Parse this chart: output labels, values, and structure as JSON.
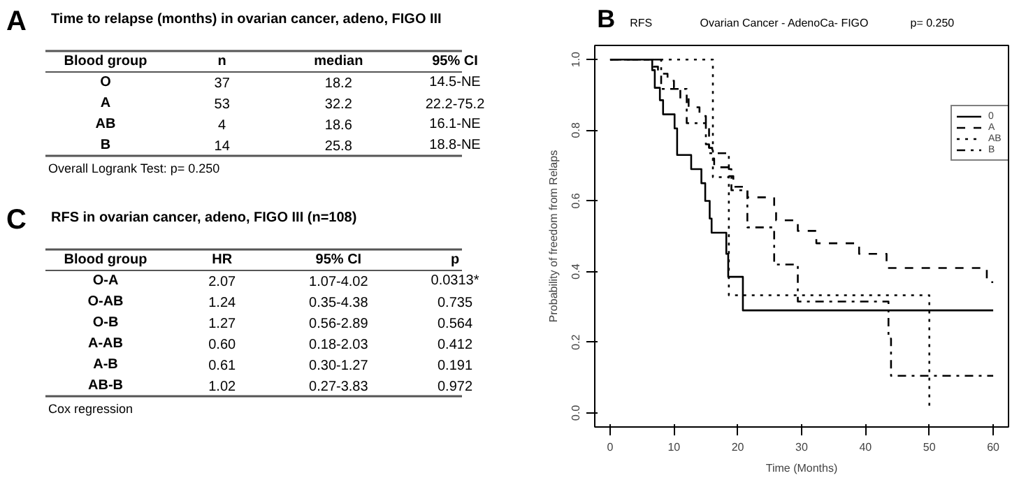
{
  "chart_data": [
    {
      "type": "other",
      "title": "Time to relapse (months) in ovarian cancer, adeno, FIGO III",
      "annotations": [
        "A",
        "Overall Logrank Test: p= 0.250"
      ],
      "categories": [
        "Blood group",
        "n",
        "median",
        "95% CI"
      ],
      "cell_labels": [
        [
          "O",
          "37",
          "18.2",
          "14.5-NE"
        ],
        [
          "A",
          "53",
          "32.2",
          "22.2-75.2"
        ],
        [
          "AB",
          "4",
          "18.6",
          "16.1-NE"
        ],
        [
          "B",
          "14",
          "25.8",
          "18.8-NE"
        ]
      ]
    },
    {
      "type": "step",
      "title": "Ovarian Cancer - AdenoCa- FIGO",
      "annotations": [
        "B",
        "RFS",
        "p= 0.250"
      ],
      "xlabel": "Time (Months)",
      "ylabel": "Probability of freedom from Relaps",
      "xlim": [
        -2.4,
        62.4
      ],
      "ylim": [
        -0.04,
        1.04
      ],
      "xticks": [
        0,
        10,
        20,
        30,
        40,
        50,
        60
      ],
      "yticks": [
        {
          "value": 0,
          "label": "0.0"
        },
        {
          "value": 0.2,
          "label": "0.2"
        },
        {
          "value": 0.4,
          "label": "0.4"
        },
        {
          "value": 0.6,
          "label": "0.6"
        },
        {
          "value": 0.8,
          "label": "0.8"
        },
        {
          "value": 1,
          "label": "1.0"
        }
      ],
      "grid": false,
      "legend": "right",
      "marker": "none",
      "series": [
        {
          "name": "0",
          "color": "#000000",
          "line_style": "solid",
          "x": [
            0,
            6.6,
            7.0,
            7.8,
            8.3,
            10.1,
            10.5,
            12.7,
            14.3,
            14.9,
            15.6,
            15.9,
            18.2,
            18.5,
            20.8,
            60
          ],
          "values": [
            1,
            0.97,
            0.92,
            0.885,
            0.845,
            0.805,
            0.73,
            0.69,
            0.65,
            0.6,
            0.55,
            0.51,
            0.45,
            0.385,
            0.29,
            0.29
          ]
        },
        {
          "name": "A",
          "color": "#000000",
          "line_style": "dashed",
          "x": [
            0,
            6.8,
            7.5,
            9.0,
            10.0,
            11.0,
            12.3,
            14.0,
            15.0,
            15.5,
            16.0,
            16.3,
            18.6,
            19.3,
            21.5,
            25.7,
            26.0,
            29.4,
            32.3,
            39.0,
            43.3,
            59.0,
            60
          ],
          "values": [
            1,
            0.98,
            0.96,
            0.94,
            0.92,
            0.89,
            0.865,
            0.84,
            0.81,
            0.75,
            0.72,
            0.695,
            0.67,
            0.64,
            0.61,
            0.57,
            0.545,
            0.515,
            0.48,
            0.45,
            0.41,
            0.37,
            0.37
          ]
        },
        {
          "name": "AB",
          "color": "#000000",
          "line_style": "dotted",
          "x": [
            0,
            16.1,
            18.6,
            50.0
          ],
          "values": [
            1,
            0.667,
            0.333,
            0.01
          ]
        },
        {
          "name": "B",
          "color": "#000000",
          "line_style": "dashdot",
          "x": [
            0,
            8.0,
            12.0,
            15.0,
            15.5,
            18.6,
            19.0,
            21.5,
            25.7,
            29.4,
            43.6,
            44.0,
            60
          ],
          "values": [
            1,
            0.917,
            0.82,
            0.76,
            0.735,
            0.69,
            0.63,
            0.525,
            0.42,
            0.315,
            0.21,
            0.105,
            0.105
          ]
        }
      ]
    },
    {
      "type": "other",
      "title": "RFS in ovarian cancer, adeno,  FIGO III (n=108)",
      "annotations": [
        "C",
        "Cox regression"
      ],
      "categories": [
        "Blood group",
        "HR",
        "95% CI",
        "p"
      ],
      "cell_labels": [
        [
          "O-A",
          "2.07",
          "1.07-4.02",
          "0.0313*"
        ],
        [
          "O-AB",
          "1.24",
          "0.35-4.38",
          "0.735"
        ],
        [
          "O-B",
          "1.27",
          "0.56-2.89",
          "0.564"
        ],
        [
          "A-AB",
          "0.60",
          "0.18-2.03",
          "0.412"
        ],
        [
          "A-B",
          "0.61",
          "0.30-1.27",
          "0.191"
        ],
        [
          "AB-B",
          "1.02",
          "0.27-3.83",
          "0.972"
        ]
      ]
    }
  ]
}
